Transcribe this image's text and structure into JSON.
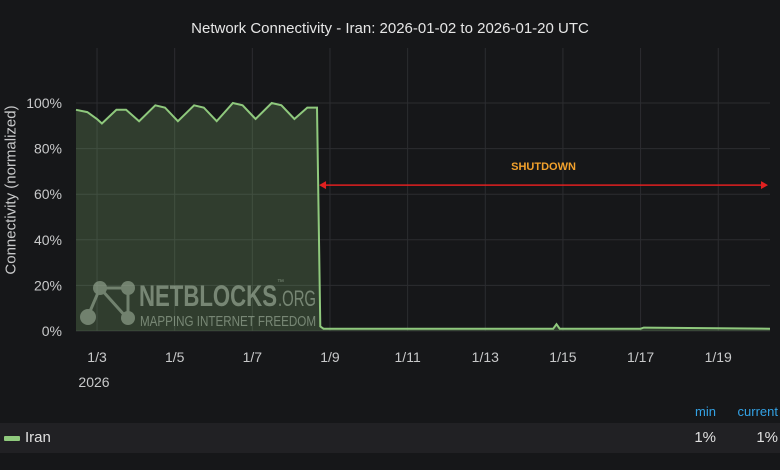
{
  "chart_data": {
    "type": "area",
    "title": "Network Connectivity - Iran: 2026-01-02 to 2026-01-20 UTC",
    "ylabel": "Connectivity (normalized)",
    "xlabel": "",
    "xlim": [
      "2026-01-02T11:00",
      "2026-01-20T08:00"
    ],
    "ylim": [
      0,
      100
    ],
    "x_ticks": [
      {
        "date": "2026-01-03",
        "label": "1/3"
      },
      {
        "date": "2026-01-05",
        "label": "1/5"
      },
      {
        "date": "2026-01-07",
        "label": "1/7"
      },
      {
        "date": "2026-01-09",
        "label": "1/9"
      },
      {
        "date": "2026-01-11",
        "label": "1/11"
      },
      {
        "date": "2026-01-13",
        "label": "1/13"
      },
      {
        "date": "2026-01-15",
        "label": "1/15"
      },
      {
        "date": "2026-01-17",
        "label": "1/17"
      },
      {
        "date": "2026-01-19",
        "label": "1/19"
      }
    ],
    "x_year_label": "2026",
    "y_ticks": [
      {
        "value": 0,
        "label": "0%"
      },
      {
        "value": 20,
        "label": "20%"
      },
      {
        "value": 40,
        "label": "40%"
      },
      {
        "value": 60,
        "label": "60%"
      },
      {
        "value": 80,
        "label": "80%"
      },
      {
        "value": 100,
        "label": "100%"
      }
    ],
    "grid": true,
    "series": [
      {
        "name": "Iran",
        "color": "#8fc97d",
        "points": [
          [
            "2026-01-02T11:00",
            97
          ],
          [
            "2026-01-02T18:00",
            96
          ],
          [
            "2026-01-03T00:00",
            93
          ],
          [
            "2026-01-03T03:00",
            91
          ],
          [
            "2026-01-03T12:00",
            97
          ],
          [
            "2026-01-03T18:00",
            97
          ],
          [
            "2026-01-04T02:00",
            92
          ],
          [
            "2026-01-04T12:00",
            99
          ],
          [
            "2026-01-04T18:00",
            98
          ],
          [
            "2026-01-05T02:00",
            92
          ],
          [
            "2026-01-05T12:00",
            99
          ],
          [
            "2026-01-05T18:00",
            98
          ],
          [
            "2026-01-06T02:00",
            92
          ],
          [
            "2026-01-06T12:00",
            100
          ],
          [
            "2026-01-06T18:00",
            99
          ],
          [
            "2026-01-07T02:00",
            93
          ],
          [
            "2026-01-07T12:00",
            100
          ],
          [
            "2026-01-07T18:00",
            99
          ],
          [
            "2026-01-08T02:00",
            93
          ],
          [
            "2026-01-08T10:00",
            98
          ],
          [
            "2026-01-08T16:00",
            98
          ],
          [
            "2026-01-08T18:00",
            2
          ],
          [
            "2026-01-08T20:00",
            1
          ],
          [
            "2026-01-14T18:00",
            1
          ],
          [
            "2026-01-14T20:00",
            3
          ],
          [
            "2026-01-14T22:00",
            1
          ],
          [
            "2026-01-17T00:00",
            1
          ],
          [
            "2026-01-17T02:00",
            1.5
          ],
          [
            "2026-01-20T08:00",
            1
          ]
        ]
      }
    ],
    "annotation": {
      "label": "SHUTDOWN",
      "from": "2026-01-08T16:00",
      "to": "2026-01-20T08:00",
      "y": 64,
      "arrow_color": "#e02020",
      "label_color": "#f2a12c"
    },
    "legend": {
      "placement": "bottom",
      "headers": {
        "min": "min",
        "current": "current"
      },
      "rows": [
        {
          "name": "Iran",
          "min": "1%",
          "current": "1%"
        }
      ]
    }
  },
  "watermark": {
    "brand": "NETBLOCKS",
    "suffix": ".ORG",
    "tm": "™",
    "tagline": "MAPPING INTERNET FREEDOM"
  }
}
